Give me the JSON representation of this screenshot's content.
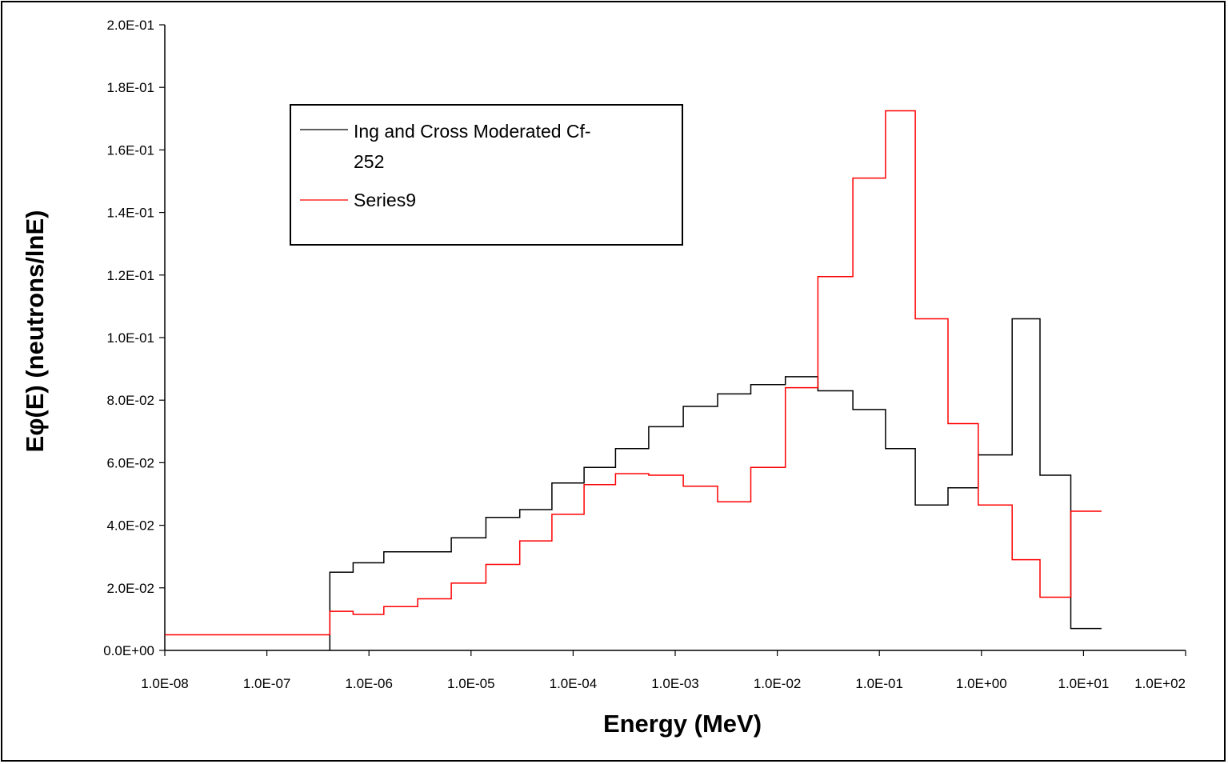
{
  "chart_data": {
    "type": "line",
    "x_scale": "log",
    "xlabel": "Energy (MeV)",
    "ylabel": "Eφ(E) (neutrons/lnE)",
    "xlim": [
      1e-08,
      100
    ],
    "ylim": [
      0,
      0.2
    ],
    "x_tick_labels": [
      "1.0E-08",
      "1.0E-07",
      "1.0E-06",
      "1.0E-05",
      "1.0E-04",
      "1.0E-03",
      "1.0E-02",
      "1.0E-01",
      "1.0E+00",
      "1.0E+01",
      "1.0E+02"
    ],
    "y_tick_labels": [
      "0.0E+00",
      "2.0E-02",
      "4.0E-02",
      "6.0E-02",
      "8.0E-02",
      "1.0E-01",
      "1.2E-01",
      "1.4E-01",
      "1.6E-01",
      "1.8E-01",
      "2.0E-01"
    ],
    "grid": false,
    "legend_position": "top-left",
    "series": [
      {
        "name": "Ing and Cross Moderated Cf-252",
        "color": "#000000",
        "step": true,
        "x": [
          4.14e-07,
          7e-07,
          1.4e-06,
          3e-06,
          6.4e-06,
          1.4e-05,
          3e-05,
          6.2e-05,
          0.000128,
          0.00026,
          0.00055,
          0.0012,
          0.0026,
          0.0055,
          0.012,
          0.025,
          0.055,
          0.115,
          0.225,
          0.47,
          0.93,
          2.0,
          3.75,
          7.5
        ],
        "y": [
          0.025,
          0.028,
          0.0315,
          0.0315,
          0.036,
          0.0425,
          0.045,
          0.0535,
          0.0585,
          0.0645,
          0.0715,
          0.078,
          0.082,
          0.085,
          0.0875,
          0.083,
          0.077,
          0.0645,
          0.0465,
          0.052,
          0.0625,
          0.106,
          0.056,
          0.007
        ],
        "x_end": 15.0,
        "start_x": 4.14e-07,
        "start_y": 0.0
      },
      {
        "name": "Series9",
        "color": "#ff0000",
        "step": true,
        "x": [
          1e-08,
          4.14e-07,
          7e-07,
          1.4e-06,
          3e-06,
          6.4e-06,
          1.4e-05,
          3e-05,
          6.2e-05,
          0.000128,
          0.00026,
          0.00055,
          0.0012,
          0.0026,
          0.0055,
          0.012,
          0.025,
          0.055,
          0.115,
          0.225,
          0.47,
          0.93,
          2.0,
          3.75,
          7.5
        ],
        "y": [
          0.005,
          0.0125,
          0.0115,
          0.014,
          0.0165,
          0.0215,
          0.0275,
          0.035,
          0.0435,
          0.053,
          0.0565,
          0.056,
          0.0525,
          0.0475,
          0.0585,
          0.084,
          0.1195,
          0.151,
          0.1725,
          0.106,
          0.0725,
          0.0465,
          0.029,
          0.017,
          0.0445
        ],
        "x_end": 15.0
      }
    ]
  }
}
